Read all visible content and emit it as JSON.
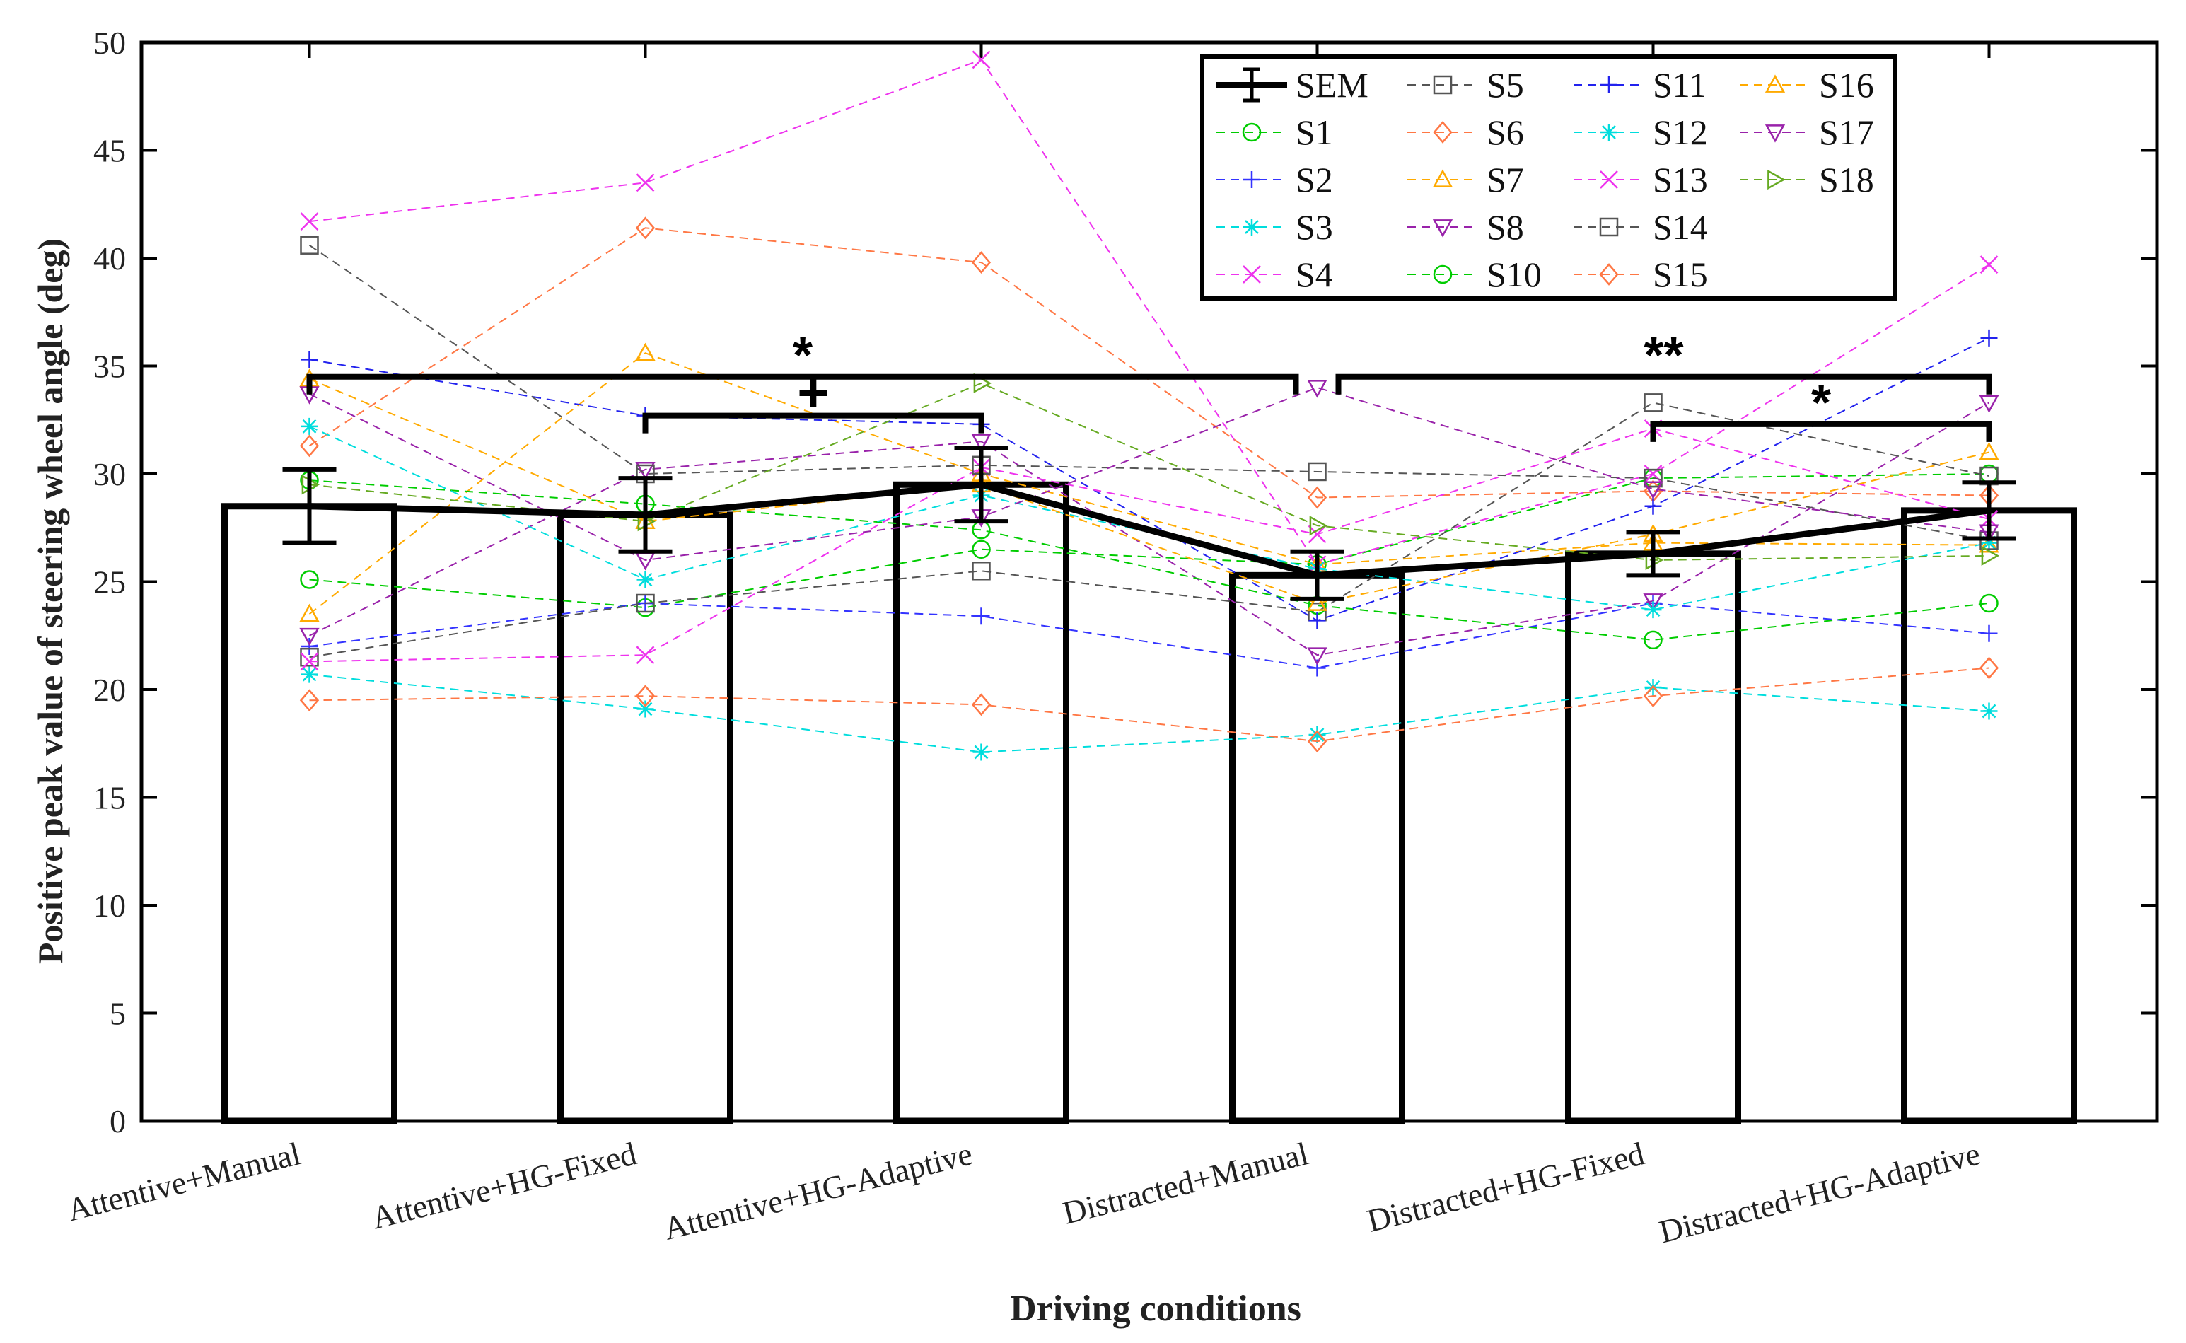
{
  "chart_data": {
    "type": "bar",
    "title": "",
    "xlabel": "Driving conditions",
    "ylabel": "Positive peak value of steering wheel angle (deg)",
    "ylim": [
      0,
      50
    ],
    "yticks": [
      0,
      5,
      10,
      15,
      20,
      25,
      30,
      35,
      40,
      45,
      50
    ],
    "ytick_labels": [
      "0",
      "5",
      "10",
      "15",
      "20",
      "25",
      "30",
      "35",
      "40",
      "45",
      "50"
    ],
    "categories": [
      "Attentive+Manual",
      "Attentive+HG-Fixed",
      "Attentive+HG-Adaptive",
      "Distracted+Manual",
      "Distracted+HG-Fixed",
      "Distracted+HG-Adaptive"
    ],
    "means": [
      28.5,
      28.1,
      29.5,
      25.3,
      26.3,
      28.3
    ],
    "sem": [
      1.7,
      1.7,
      1.7,
      1.1,
      1.0,
      1.3
    ],
    "legend_position": "top-right",
    "mean_label": "SEM",
    "series": [
      {
        "name": "S1",
        "color": "#00cc00",
        "marker": "circle",
        "values": [
          25.1,
          23.8,
          26.5,
          25.8,
          29.8,
          30.0
        ]
      },
      {
        "name": "S2",
        "color": "#3333ff",
        "marker": "plus",
        "values": [
          22.0,
          24.0,
          23.4,
          21.0,
          24.0,
          22.6
        ]
      },
      {
        "name": "S3",
        "color": "#00dddd",
        "marker": "asterisk",
        "values": [
          20.7,
          19.1,
          17.1,
          17.9,
          20.1,
          19.0
        ]
      },
      {
        "name": "S4",
        "color": "#ee33ee",
        "marker": "x",
        "values": [
          41.7,
          43.5,
          49.2,
          25.8,
          30.0,
          39.7
        ]
      },
      {
        "name": "S5",
        "color": "#555555",
        "marker": "square",
        "values": [
          21.5,
          24.0,
          25.5,
          23.6,
          33.3,
          29.9
        ]
      },
      {
        "name": "S6",
        "color": "#ff7744",
        "marker": "diamond",
        "values": [
          31.3,
          41.4,
          39.8,
          28.9,
          29.2,
          29.0
        ]
      },
      {
        "name": "S7",
        "color": "#ffaa00",
        "marker": "triangle-up",
        "values": [
          23.5,
          35.6,
          30.0,
          25.8,
          26.8,
          26.7
        ]
      },
      {
        "name": "S8",
        "color": "#9922aa",
        "marker": "triangle-down",
        "values": [
          22.5,
          30.2,
          31.5,
          21.6,
          24.1,
          33.3
        ]
      },
      {
        "name": "S10",
        "color": "#00cc00",
        "marker": "circle",
        "values": [
          29.7,
          28.6,
          27.4,
          23.9,
          22.3,
          24.0
        ]
      },
      {
        "name": "S11",
        "color": "#2222ee",
        "marker": "plus",
        "values": [
          35.3,
          32.7,
          32.3,
          23.2,
          28.5,
          36.3
        ]
      },
      {
        "name": "S12",
        "color": "#00dddd",
        "marker": "asterisk",
        "values": [
          32.2,
          25.1,
          29.0,
          25.6,
          23.7,
          26.8
        ]
      },
      {
        "name": "S13",
        "color": "#ee33ee",
        "marker": "x",
        "values": [
          21.3,
          21.6,
          30.3,
          27.2,
          32.1,
          27.9
        ]
      },
      {
        "name": "S14",
        "color": "#555555",
        "marker": "square",
        "values": [
          40.6,
          30.0,
          30.4,
          30.1,
          29.8,
          26.9
        ]
      },
      {
        "name": "S15",
        "color": "#ff7744",
        "marker": "diamond",
        "values": [
          19.5,
          19.7,
          19.3,
          17.6,
          19.7,
          21.0
        ]
      },
      {
        "name": "S16",
        "color": "#ffaa00",
        "marker": "triangle-up",
        "values": [
          34.4,
          27.8,
          29.5,
          24.0,
          27.2,
          31.0
        ]
      },
      {
        "name": "S17",
        "color": "#9922aa",
        "marker": "triangle-down",
        "values": [
          33.7,
          26.0,
          28.0,
          34.0,
          29.3,
          27.3
        ]
      },
      {
        "name": "S18",
        "color": "#66aa22",
        "marker": "triangle-right",
        "values": [
          29.5,
          27.8,
          34.2,
          27.6,
          26.0,
          26.2
        ]
      }
    ],
    "significance": [
      {
        "label": "*",
        "from": 0,
        "to": 3,
        "y": 34.5
      },
      {
        "label": "+",
        "from": 1,
        "to": 2,
        "y": 32.7
      },
      {
        "label": "**",
        "from": 3,
        "to": 5,
        "y": 34.5
      },
      {
        "label": "*",
        "from": 4,
        "to": 5,
        "y": 32.3
      }
    ]
  }
}
